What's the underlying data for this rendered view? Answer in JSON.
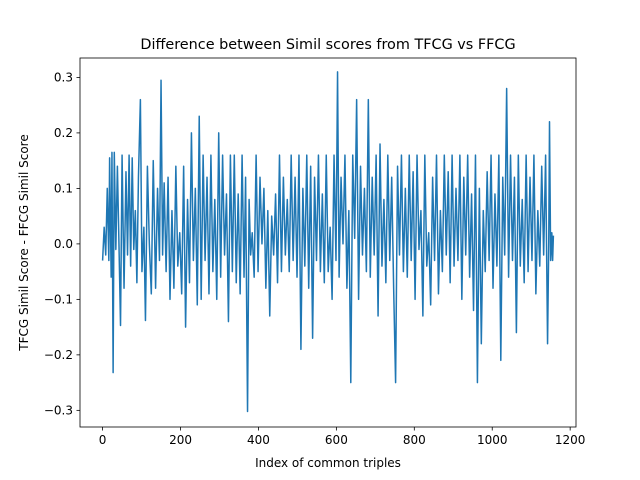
{
  "chart_data": {
    "type": "line",
    "title": "Difference between Simil scores from TFCG vs FFCG",
    "xlabel": "Index of common triples",
    "ylabel": "TFCG Simil Score - FFCG Simil Score",
    "xlim": [
      -58,
      1215
    ],
    "ylim": [
      -0.33,
      0.335
    ],
    "xticks": [
      0,
      200,
      400,
      600,
      800,
      1000,
      1200
    ],
    "xtick_labels": [
      "0",
      "200",
      "400",
      "600",
      "800",
      "1000",
      "1200"
    ],
    "yticks": [
      -0.3,
      -0.2,
      -0.1,
      0.0,
      0.1,
      0.2,
      0.3
    ],
    "ytick_labels": [
      "−0.3",
      "−0.2",
      "−0.1",
      "0.0",
      "0.1",
      "0.2",
      "0.3"
    ],
    "grid": false,
    "legend": false,
    "series": [
      {
        "color": "#1f77b4",
        "n_points": 1158,
        "values_sampled": [
          [
            0,
            -0.03
          ],
          [
            4,
            0.03
          ],
          [
            8,
            -0.02
          ],
          [
            12,
            0.1
          ],
          [
            16,
            -0.03
          ],
          [
            18,
            0.155
          ],
          [
            22,
            -0.06
          ],
          [
            24,
            0.165
          ],
          [
            27,
            -0.232
          ],
          [
            30,
            0.165
          ],
          [
            34,
            -0.01
          ],
          [
            38,
            0.14
          ],
          [
            42,
            0.0
          ],
          [
            46,
            -0.147
          ],
          [
            50,
            0.16
          ],
          [
            55,
            -0.08
          ],
          [
            60,
            0.13
          ],
          [
            64,
            -0.02
          ],
          [
            68,
            0.16
          ],
          [
            72,
            -0.04
          ],
          [
            76,
            0.155
          ],
          [
            80,
            -0.01
          ],
          [
            84,
            0.06
          ],
          [
            88,
            -0.07
          ],
          [
            92,
            0.12
          ],
          [
            97,
            0.26
          ],
          [
            101,
            -0.05
          ],
          [
            106,
            0.03
          ],
          [
            110,
            -0.138
          ],
          [
            115,
            0.14
          ],
          [
            120,
            0.0
          ],
          [
            125,
            -0.09
          ],
          [
            130,
            0.15
          ],
          [
            136,
            -0.08
          ],
          [
            141,
            0.1
          ],
          [
            146,
            -0.03
          ],
          [
            150,
            0.295
          ],
          [
            154,
            -0.02
          ],
          [
            158,
            0.11
          ],
          [
            163,
            -0.05
          ],
          [
            168,
            0.12
          ],
          [
            173,
            -0.1
          ],
          [
            178,
            0.06
          ],
          [
            183,
            -0.08
          ],
          [
            188,
            0.14
          ],
          [
            193,
            -0.04
          ],
          [
            198,
            0.02
          ],
          [
            203,
            -0.09
          ],
          [
            208,
            0.14
          ],
          [
            213,
            -0.15
          ],
          [
            218,
            0.08
          ],
          [
            223,
            -0.07
          ],
          [
            228,
            0.2
          ],
          [
            233,
            -0.03
          ],
          [
            238,
            0.1
          ],
          [
            243,
            -0.11
          ],
          [
            248,
            0.23
          ],
          [
            253,
            -0.1
          ],
          [
            258,
            0.16
          ],
          [
            263,
            -0.03
          ],
          [
            268,
            0.12
          ],
          [
            273,
            -0.09
          ],
          [
            278,
            0.16
          ],
          [
            283,
            -0.05
          ],
          [
            288,
            0.08
          ],
          [
            293,
            -0.1
          ],
          [
            298,
            0.2
          ],
          [
            303,
            -0.06
          ],
          [
            308,
            0.16
          ],
          [
            313,
            -0.02
          ],
          [
            318,
            0.09
          ],
          [
            323,
            -0.14
          ],
          [
            328,
            0.16
          ],
          [
            333,
            -0.05
          ],
          [
            338,
            0.16
          ],
          [
            343,
            -0.07
          ],
          [
            348,
            0.09
          ],
          [
            353,
            -0.09
          ],
          [
            358,
            0.16
          ],
          [
            363,
            -0.06
          ],
          [
            367,
            0.12
          ],
          [
            372,
            -0.302
          ],
          [
            376,
            0.08
          ],
          [
            380,
            -0.02
          ],
          [
            384,
            0.02
          ],
          [
            389,
            -0.06
          ],
          [
            394,
            0.16
          ],
          [
            399,
            -0.05
          ],
          [
            404,
            0.12
          ],
          [
            409,
            0.0
          ],
          [
            414,
            0.1
          ],
          [
            419,
            -0.08
          ],
          [
            424,
            0.06
          ],
          [
            429,
            -0.13
          ],
          [
            434,
            0.05
          ],
          [
            439,
            -0.02
          ],
          [
            444,
            0.09
          ],
          [
            449,
            -0.07
          ],
          [
            454,
            0.16
          ],
          [
            459,
            -0.05
          ],
          [
            464,
            0.12
          ],
          [
            469,
            -0.02
          ],
          [
            474,
            0.08
          ],
          [
            479,
            -0.05
          ],
          [
            484,
            0.16
          ],
          [
            489,
            -0.03
          ],
          [
            494,
            0.12
          ],
          [
            499,
            -0.06
          ],
          [
            504,
            0.16
          ],
          [
            509,
            -0.19
          ],
          [
            514,
            0.1
          ],
          [
            519,
            -0.04
          ],
          [
            524,
            0.16
          ],
          [
            529,
            -0.08
          ],
          [
            534,
            0.14
          ],
          [
            539,
            -0.17
          ],
          [
            544,
            0.12
          ],
          [
            549,
            -0.03
          ],
          [
            554,
            0.16
          ],
          [
            559,
            -0.05
          ],
          [
            564,
            0.09
          ],
          [
            569,
            -0.07
          ],
          [
            574,
            0.16
          ],
          [
            579,
            -0.05
          ],
          [
            584,
            0.03
          ],
          [
            589,
            -0.1
          ],
          [
            594,
            0.16
          ],
          [
            599,
            -0.03
          ],
          [
            603,
            0.31
          ],
          [
            607,
            -0.06
          ],
          [
            612,
            0.12
          ],
          [
            617,
            0.0
          ],
          [
            622,
            0.16
          ],
          [
            627,
            -0.08
          ],
          [
            632,
            0.06
          ],
          [
            637,
            -0.25
          ],
          [
            642,
            0.16
          ],
          [
            647,
            0.01
          ],
          [
            652,
            0.26
          ],
          [
            657,
            -0.1
          ],
          [
            662,
            0.14
          ],
          [
            667,
            -0.02
          ],
          [
            672,
            0.1
          ],
          [
            677,
            -0.05
          ],
          [
            682,
            0.26
          ],
          [
            687,
            -0.06
          ],
          [
            692,
            0.12
          ],
          [
            697,
            -0.02
          ],
          [
            702,
            0.16
          ],
          [
            707,
            -0.13
          ],
          [
            712,
            0.18
          ],
          [
            717,
            -0.04
          ],
          [
            722,
            0.08
          ],
          [
            727,
            -0.07
          ],
          [
            732,
            0.16
          ],
          [
            737,
            -0.03
          ],
          [
            742,
            0.12
          ],
          [
            747,
            -0.08
          ],
          [
            752,
            -0.25
          ],
          [
            757,
            0.14
          ],
          [
            762,
            -0.02
          ],
          [
            767,
            0.16
          ],
          [
            772,
            -0.05
          ],
          [
            777,
            0.1
          ],
          [
            782,
            -0.06
          ],
          [
            787,
            0.16
          ],
          [
            792,
            -0.03
          ],
          [
            797,
            0.13
          ],
          [
            802,
            -0.1
          ],
          [
            807,
            0.16
          ],
          [
            812,
            -0.01
          ],
          [
            817,
            0.06
          ],
          [
            822,
            -0.13
          ],
          [
            827,
            0.16
          ],
          [
            832,
            -0.04
          ],
          [
            837,
            0.02
          ],
          [
            842,
            -0.11
          ],
          [
            847,
            0.12
          ],
          [
            852,
            -0.03
          ],
          [
            857,
            0.16
          ],
          [
            862,
            -0.09
          ],
          [
            867,
            0.06
          ],
          [
            872,
            -0.05
          ],
          [
            877,
            0.16
          ],
          [
            882,
            -0.02
          ],
          [
            887,
            0.13
          ],
          [
            892,
            -0.07
          ],
          [
            897,
            0.16
          ],
          [
            902,
            -0.04
          ],
          [
            907,
            0.1
          ],
          [
            912,
            -0.03
          ],
          [
            917,
            0.16
          ],
          [
            922,
            -0.1
          ],
          [
            927,
            0.12
          ],
          [
            932,
            -0.02
          ],
          [
            937,
            0.16
          ],
          [
            942,
            -0.06
          ],
          [
            947,
            0.09
          ],
          [
            952,
            -0.12
          ],
          [
            957,
            0.16
          ],
          [
            962,
            -0.25
          ],
          [
            967,
            0.1
          ],
          [
            972,
            -0.18
          ],
          [
            977,
            0.06
          ],
          [
            982,
            -0.05
          ],
          [
            987,
            0.13
          ],
          [
            992,
            -0.03
          ],
          [
            997,
            0.16
          ],
          [
            1002,
            -0.08
          ],
          [
            1007,
            0.09
          ],
          [
            1012,
            -0.04
          ],
          [
            1017,
            0.16
          ],
          [
            1022,
            -0.21
          ],
          [
            1027,
            0.12
          ],
          [
            1032,
            -0.02
          ],
          [
            1037,
            0.28
          ],
          [
            1042,
            -0.06
          ],
          [
            1047,
            0.16
          ],
          [
            1052,
            -0.03
          ],
          [
            1057,
            0.12
          ],
          [
            1062,
            -0.16
          ],
          [
            1067,
            0.16
          ],
          [
            1072,
            -0.04
          ],
          [
            1077,
            0.08
          ],
          [
            1082,
            -0.07
          ],
          [
            1087,
            0.16
          ],
          [
            1092,
            -0.05
          ],
          [
            1097,
            0.12
          ],
          [
            1102,
            -0.03
          ],
          [
            1107,
            0.16
          ],
          [
            1112,
            -0.09
          ],
          [
            1117,
            0.06
          ],
          [
            1122,
            -0.04
          ],
          [
            1127,
            0.14
          ],
          [
            1132,
            -0.02
          ],
          [
            1137,
            0.16
          ],
          [
            1142,
            -0.18
          ],
          [
            1145,
            0.0
          ],
          [
            1147,
            0.22
          ],
          [
            1150,
            -0.03
          ],
          [
            1153,
            0.02
          ],
          [
            1155,
            -0.03
          ],
          [
            1157,
            0.015
          ]
        ]
      }
    ]
  }
}
